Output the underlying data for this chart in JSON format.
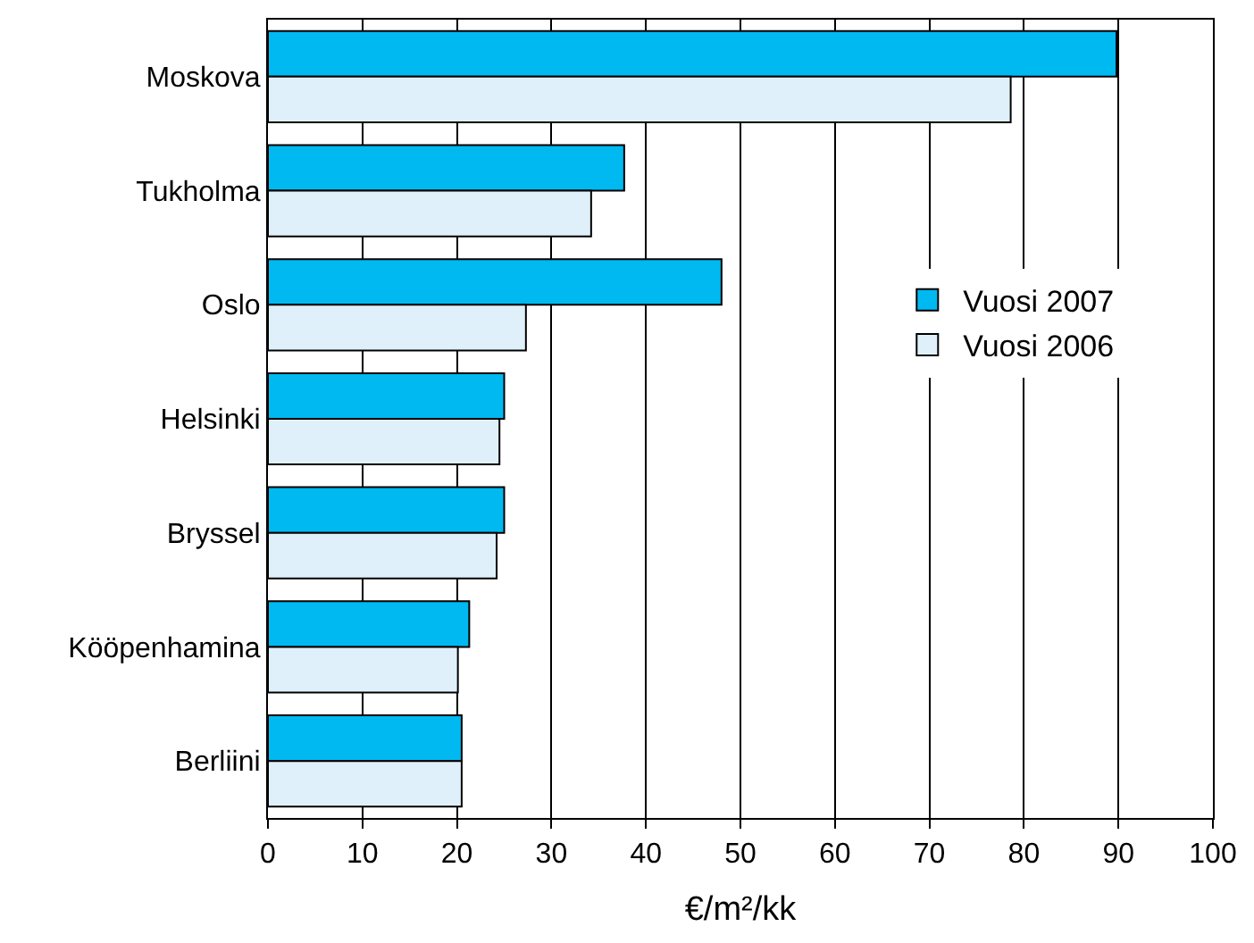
{
  "chart_data": {
    "type": "bar",
    "orientation": "horizontal",
    "xlabel": "€/m²/kk",
    "categories": [
      "Moskova",
      "Tukholma",
      "Oslo",
      "Helsinki",
      "Bryssel",
      "Kööpenhamina",
      "Berliini"
    ],
    "series": [
      {
        "name": "Vuosi 2007",
        "color": "#00b9f1",
        "values": [
          89.8,
          37.7,
          48.0,
          25.0,
          25.0,
          21.3,
          20.5
        ]
      },
      {
        "name": "Vuosi 2006",
        "color": "#dff0fa",
        "values": [
          78.6,
          34.2,
          27.3,
          24.5,
          24.2,
          20.1,
          20.5
        ]
      }
    ],
    "xlim": [
      0,
      100
    ],
    "xticks": [
      0,
      10,
      20,
      30,
      40,
      50,
      60,
      70,
      80,
      90,
      100
    ],
    "grid": "x",
    "legend": "right"
  }
}
